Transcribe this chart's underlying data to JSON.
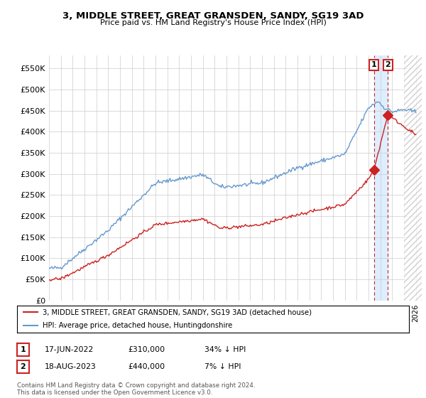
{
  "title": "3, MIDDLE STREET, GREAT GRANSDEN, SANDY, SG19 3AD",
  "subtitle": "Price paid vs. HM Land Registry's House Price Index (HPI)",
  "ylabel_ticks": [
    "£0",
    "£50K",
    "£100K",
    "£150K",
    "£200K",
    "£250K",
    "£300K",
    "£350K",
    "£400K",
    "£450K",
    "£500K",
    "£550K"
  ],
  "ytick_values": [
    0,
    50000,
    100000,
    150000,
    200000,
    250000,
    300000,
    350000,
    400000,
    450000,
    500000,
    550000
  ],
  "ylim": [
    0,
    580000
  ],
  "xlim_start": 1995.3,
  "xlim_end": 2026.5,
  "hpi_color": "#6699CC",
  "price_color": "#CC2222",
  "dashed_color": "#CC2222",
  "shade_color": "#DDEEFF",
  "sale1_x": 2022.46,
  "sale1_y": 310000,
  "sale2_x": 2023.63,
  "sale2_y": 440000,
  "legend_label1": "3, MIDDLE STREET, GREAT GRANSDEN, SANDY, SG19 3AD (detached house)",
  "legend_label2": "HPI: Average price, detached house, Huntingdonshire",
  "annotation1_date": "17-JUN-2022",
  "annotation1_price": "£310,000",
  "annotation1_hpi": "34% ↓ HPI",
  "annotation2_date": "18-AUG-2023",
  "annotation2_price": "£440,000",
  "annotation2_hpi": "7% ↓ HPI",
  "footer": "Contains HM Land Registry data © Crown copyright and database right 2024.\nThis data is licensed under the Open Government Licence v3.0.",
  "background_color": "#FFFFFF",
  "grid_color": "#CCCCCC"
}
